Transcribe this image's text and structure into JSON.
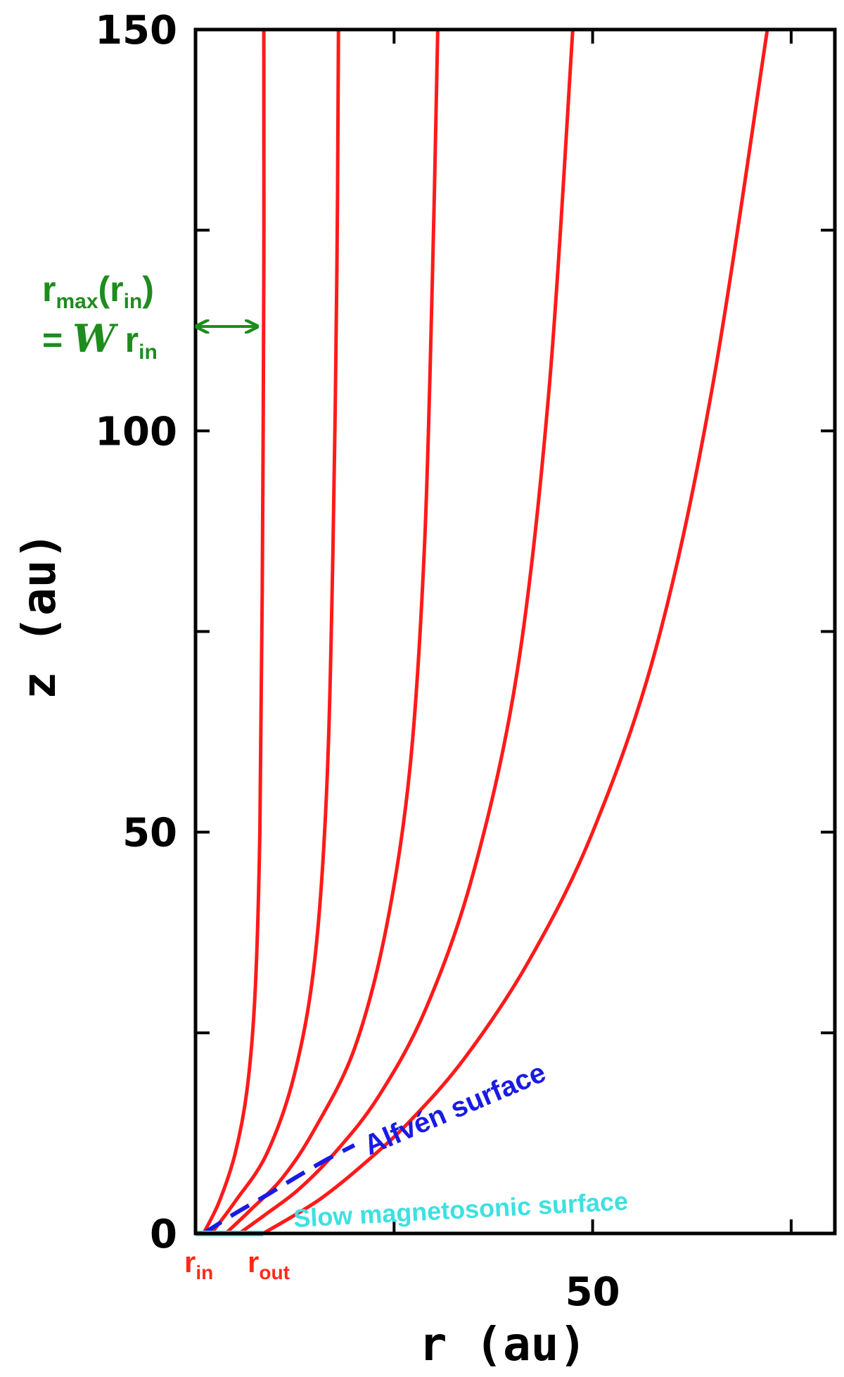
{
  "chart_data": {
    "type": "line",
    "title": "",
    "xlabel": "r (au)",
    "ylabel": "z (au)",
    "xlim": [
      0,
      80.5
    ],
    "ylim": [
      0,
      150
    ],
    "x_tick_labels": [
      {
        "value": 50,
        "label": "50"
      }
    ],
    "x_minor_ticks": [
      25,
      75
    ],
    "y_tick_labels": [
      {
        "value": 0,
        "label": "0"
      },
      {
        "value": 50,
        "label": "50"
      },
      {
        "value": 100,
        "label": "100"
      },
      {
        "value": 150,
        "label": "150"
      }
    ],
    "y_minor_ticks": [
      25,
      75,
      125
    ],
    "grid": false,
    "colors": {
      "field_lines": "#ff1a1a",
      "alfven_surface": "#1a1ae6",
      "slow_surface": "#3ee0e0",
      "annotation": "#1e8c1e",
      "axes": "#000000"
    },
    "series": [
      {
        "style": "solid",
        "x": [
          1,
          3,
          5,
          6.5,
          7.5,
          8.1,
          8.4,
          8.6,
          8.6
        ],
        "y": [
          0,
          4,
          10,
          18,
          30,
          50,
          80,
          120,
          150
        ]
      },
      {
        "style": "solid",
        "x": [
          2,
          5,
          9,
          12.5,
          15,
          16.5,
          17.3,
          17.8,
          18
        ],
        "y": [
          0,
          4,
          10,
          20,
          34,
          55,
          85,
          120,
          150
        ]
      },
      {
        "style": "solid",
        "x": [
          3.8,
          7,
          11,
          15,
          20,
          24,
          27,
          28.8,
          29.8,
          30.5
        ],
        "y": [
          0,
          3,
          7,
          13,
          23,
          38,
          58,
          85,
          118,
          150
        ]
      },
      {
        "style": "solid",
        "x": [
          5.5,
          9,
          13,
          17.5,
          23,
          29,
          35,
          40.5,
          44.5,
          47.5
        ],
        "y": [
          0,
          2.5,
          5.5,
          10,
          17,
          28,
          45,
          70,
          105,
          150
        ]
      },
      {
        "style": "solid",
        "x": [
          8.5,
          12,
          16,
          21,
          27,
          34,
          42,
          50,
          58,
          65,
          72
        ],
        "y": [
          0,
          2,
          4.5,
          8.5,
          14,
          22,
          34,
          50,
          73,
          105,
          150
        ]
      },
      {
        "name": "Alfvén surface",
        "style": "dashed",
        "x": [
          1,
          5,
          9,
          13,
          16.5,
          20
        ],
        "y": [
          0,
          2.5,
          4.8,
          7.2,
          9.2,
          11
        ]
      },
      {
        "name": "Slow magnetosonic surface",
        "style": "solid",
        "x": [
          0,
          8.5
        ],
        "y": [
          0,
          0
        ]
      }
    ],
    "annotations": {
      "rmax_line1_base": "r",
      "rmax_line1_sub1": "max",
      "rmax_line1_paren_open": "(r",
      "rmax_line1_sub2": "in",
      "rmax_line1_paren_close": ")",
      "rmax_line2_eq": "= ",
      "rmax_line2_w": "W",
      "rmax_line2_r": " r",
      "rmax_line2_sub": "in",
      "rin_base": "r",
      "rin_sub": "in",
      "rout_base": "r",
      "rout_sub": "out",
      "alfven_label": "Alfvén surface",
      "slow_label": "Slow magnetosonic surface",
      "arrow_z": 113,
      "arrow_x": [
        0.3,
        7.6
      ]
    }
  }
}
